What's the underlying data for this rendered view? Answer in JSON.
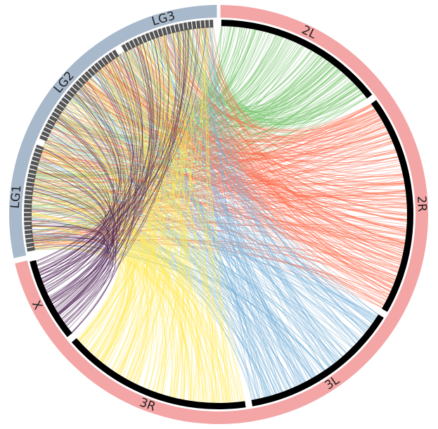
{
  "chromosomes": [
    {
      "label": "2L",
      "color": "#78c46e"
    },
    {
      "label": "2R",
      "color": "#ff6a48"
    },
    {
      "label": "3L",
      "color": "#79b0d9"
    },
    {
      "label": "3R",
      "color": "#ffe95a"
    },
    {
      "label": "X",
      "color": "#4a1d50"
    }
  ],
  "linkage_groups": [
    {
      "label": "LG1"
    },
    {
      "label": "LG2"
    },
    {
      "label": "LG3"
    }
  ]
}
